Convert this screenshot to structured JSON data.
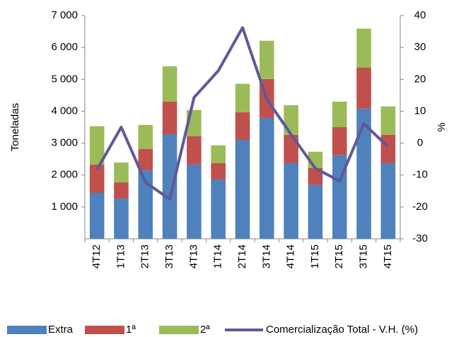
{
  "chart_data": {
    "type": "bar",
    "y_label": "Toneladas",
    "y2_label": "%",
    "categories": [
      "4T12",
      "1T13",
      "2T13",
      "3T13",
      "4T13",
      "1T14",
      "2T14",
      "3T14",
      "4T14",
      "1T15",
      "2T15",
      "3T15",
      "4T15"
    ],
    "series": [
      {
        "name": "Extra",
        "color": "#4f81bd",
        "values": [
          1440,
          1260,
          2150,
          3280,
          2330,
          1860,
          3100,
          3790,
          2370,
          1690,
          2620,
          4080,
          2370
        ]
      },
      {
        "name": "1ª",
        "color": "#c0504d",
        "values": [
          890,
          510,
          670,
          1020,
          890,
          510,
          870,
          1220,
          890,
          530,
          880,
          1290,
          890
        ]
      },
      {
        "name": "2ª",
        "color": "#9bbb59",
        "values": [
          1200,
          620,
          750,
          1110,
          820,
          560,
          890,
          1200,
          930,
          510,
          800,
          1220,
          890
        ]
      },
      {
        "name": "Comercialização Total - V.H. (%)",
        "color": "#5f589a",
        "type": "line",
        "axis": "y2",
        "values": [
          -8.3,
          5,
          -12.3,
          -17.6,
          14.3,
          22.7,
          36.2,
          13.8,
          2.7,
          -7.9,
          -11.9,
          6.1,
          -1.2
        ]
      }
    ],
    "stacked": true,
    "ylim": [
      0,
      7000
    ],
    "yticks": [
      {
        "value": 1000,
        "label": "1 000"
      },
      {
        "value": 2000,
        "label": "2 000"
      },
      {
        "value": 3000,
        "label": "3 000"
      },
      {
        "value": 4000,
        "label": "4 000"
      },
      {
        "value": 5000,
        "label": "5 000"
      },
      {
        "value": 6000,
        "label": "6 000"
      },
      {
        "value": 7000,
        "label": "7 000"
      }
    ],
    "y2lim": [
      -30,
      40
    ],
    "y2ticks": [
      -30,
      -20,
      -10,
      0,
      10,
      20,
      30,
      40
    ],
    "grid": false
  }
}
